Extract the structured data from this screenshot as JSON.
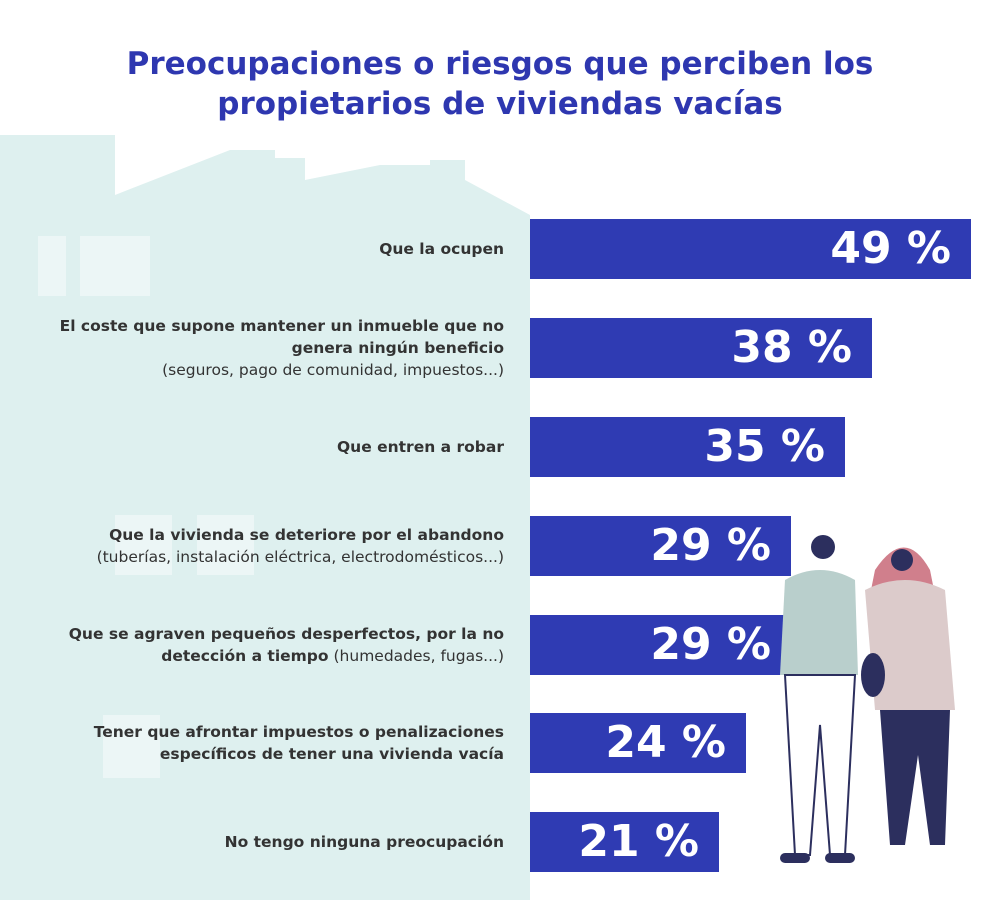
{
  "title_line1": "Preocupaciones o riesgos que perciben los",
  "title_line2": "propietarios de viviendas vacías",
  "chart_data": {
    "type": "bar",
    "orientation": "horizontal",
    "title": "Preocupaciones o riesgos que perciben los propietarios de viviendas vacías",
    "categories": [
      "Que la ocupen",
      "El coste que supone mantener un inmueble que no genera ningún beneficio (seguros, pago de comunidad, impuestos...)",
      "Que entren a robar",
      "Que la vivienda se deteriore por el abandono (tuberías, instalación eléctrica, electrodomésticos...)",
      "Que se agraven pequeños desperfectos, por la no detección a tiempo (humedades, fugas...)",
      "Tener que afrontar impuestos o penalizaciones específicos de tener una vivienda vacía",
      "No tengo ninguna preocupación"
    ],
    "values": [
      49,
      38,
      35,
      29,
      29,
      24,
      21
    ],
    "unit": "%",
    "bar_color": "#2f3bb3",
    "grid": false
  },
  "items": [
    {
      "bold": "Que la ocupen",
      "light": "",
      "value_label": "49 %"
    },
    {
      "bold": "El coste que supone mantener un inmueble que no genera ningún beneficio",
      "light": "(seguros, pago de comunidad, impuestos...)",
      "value_label": "38 %"
    },
    {
      "bold": "Que entren a robar",
      "light": "",
      "value_label": "35 %"
    },
    {
      "bold": "Que la vivienda se deteriore por el abandono",
      "light": "(tuberías, instalación eléctrica, electrodomésticos...)",
      "value_label": "29 %"
    },
    {
      "bold": "Que se agraven pequeños desperfectos, por la no detección a tiempo",
      "light": "(humedades, fugas...)",
      "value_label": "29 %"
    },
    {
      "bold": "Tener que afrontar impuestos o penalizaciones específicos de tener una vivienda vacía",
      "light": "",
      "value_label": "24 %"
    },
    {
      "bold": "No tengo ninguna preocupación",
      "light": "",
      "value_label": "21 %"
    }
  ],
  "colors": {
    "title": "#2e37b0",
    "bar": "#2f3bb3",
    "house": "#def0ef",
    "window": "#ecf6f6"
  }
}
